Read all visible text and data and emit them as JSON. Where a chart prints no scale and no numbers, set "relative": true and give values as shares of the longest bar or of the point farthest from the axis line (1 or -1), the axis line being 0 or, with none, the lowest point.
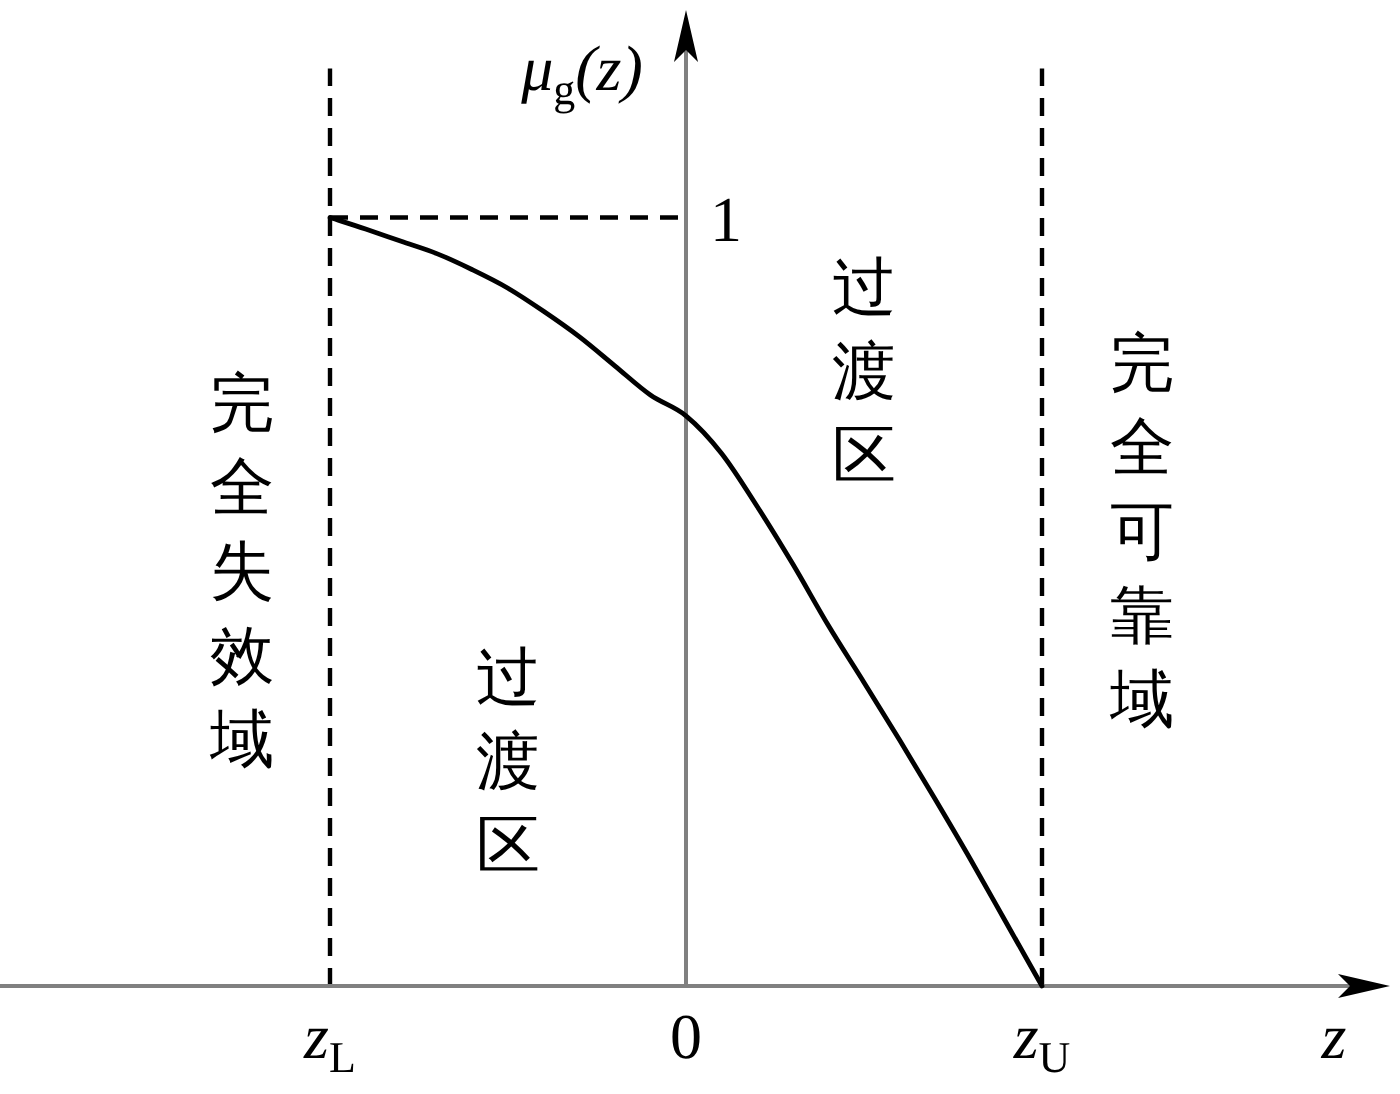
{
  "chart_data": {
    "type": "line",
    "relative": true,
    "xlabel": "z",
    "ylabel": "μ$_{g}$(z)",
    "categories": [
      "z$_{L}$",
      null,
      null,
      null,
      null,
      null,
      null,
      null,
      null,
      null,
      "0",
      null,
      null,
      null,
      null,
      null,
      null,
      null,
      null,
      null,
      "z$_{U}$"
    ],
    "series": [
      {
        "color": "#000000",
        "values": [
          1,
          0.985,
          0.969,
          0.953,
          0.932,
          0.908,
          0.878,
          0.845,
          0.807,
          0.769,
          0.742,
          0.693,
          0.624,
          0.549,
          0.469,
          0.395,
          0.32,
          0.243,
          0.164,
          0.082,
          0
        ]
      }
    ],
    "tick_labels": "x",
    "ref_lines": [
      {
        "axis": "y",
        "value": 1,
        "label": "1",
        "line_style": "dashed",
        "color": "#000000"
      },
      {
        "axis": "x",
        "value": "z$_{L}$",
        "line_style": "dashed",
        "color": "#000000"
      },
      {
        "axis": "x",
        "value": "z$_{U}$",
        "line_style": "dashed",
        "color": "#000000"
      }
    ],
    "annotations": [
      "完全失效域",
      "过渡区",
      "过渡区",
      "完全可靠域"
    ]
  }
}
